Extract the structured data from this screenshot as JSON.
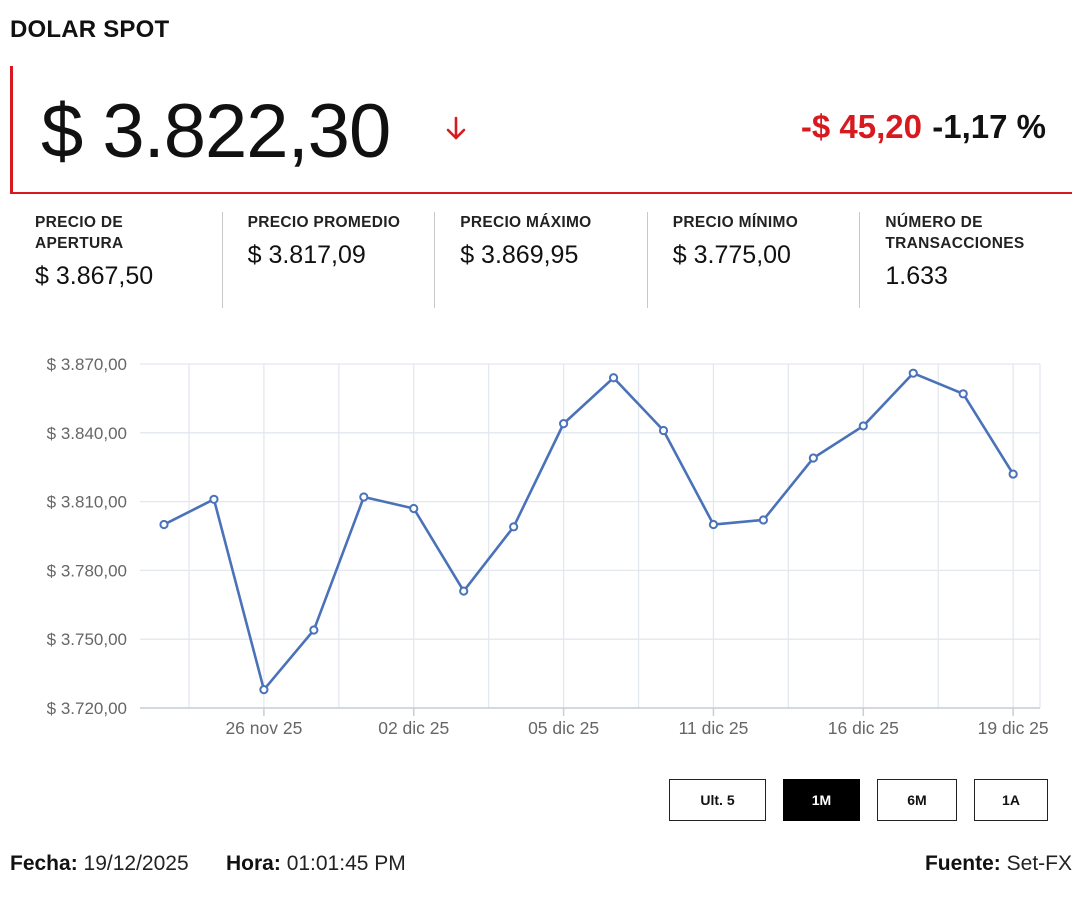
{
  "header": {
    "title": "DOLAR SPOT"
  },
  "price": {
    "value": "$ 3.822,30",
    "change": "-$ 45,20",
    "change_pct": "-1,17 %",
    "direction": "down-arrow-icon",
    "down_color": "#d71920"
  },
  "stats": [
    {
      "label": "PRECIO DE APERTURA",
      "value": "$ 3.867,50"
    },
    {
      "label": "PRECIO PROMEDIO",
      "value": "$ 3.817,09"
    },
    {
      "label": "PRECIO MÁXIMO",
      "value": "$ 3.869,95"
    },
    {
      "label": "PRECIO MÍNIMO",
      "value": "$ 3.775,00"
    },
    {
      "label": "NÚMERO DE TRANSACCIONES",
      "value": "1.633"
    }
  ],
  "chart_data": {
    "type": "line",
    "line_color": "#4a72b8",
    "grid": true,
    "ylim": [
      3720,
      3870
    ],
    "y_ticks": [
      3720,
      3750,
      3780,
      3810,
      3840,
      3870
    ],
    "y_tick_labels": [
      "$ 3.720,00",
      "$ 3.750,00",
      "$ 3.780,00",
      "$ 3.810,00",
      "$ 3.840,00",
      "$ 3.870,00"
    ],
    "x_tick_labels": [
      "26 nov 25",
      "02 dic 25",
      "05 dic 25",
      "11 dic 25",
      "16 dic 25",
      "19 dic 25"
    ],
    "x_tick_index": [
      2,
      5,
      8,
      11,
      14,
      17
    ],
    "series": [
      {
        "values": [
          3800,
          3811,
          3728,
          3754,
          3812,
          3807,
          3771,
          3799,
          3844,
          3864,
          3841,
          3800,
          3802,
          3829,
          3843,
          3866,
          3857,
          3822
        ]
      }
    ]
  },
  "ranges": {
    "buttons": [
      "Ult. 5",
      "1M",
      "6M",
      "1A"
    ],
    "active": "1M"
  },
  "footer": {
    "date_label": "Fecha:",
    "date": "19/12/2025",
    "time_label": "Hora:",
    "time": "01:01:45 PM",
    "source_label": "Fuente:",
    "source": "Set-FX"
  }
}
